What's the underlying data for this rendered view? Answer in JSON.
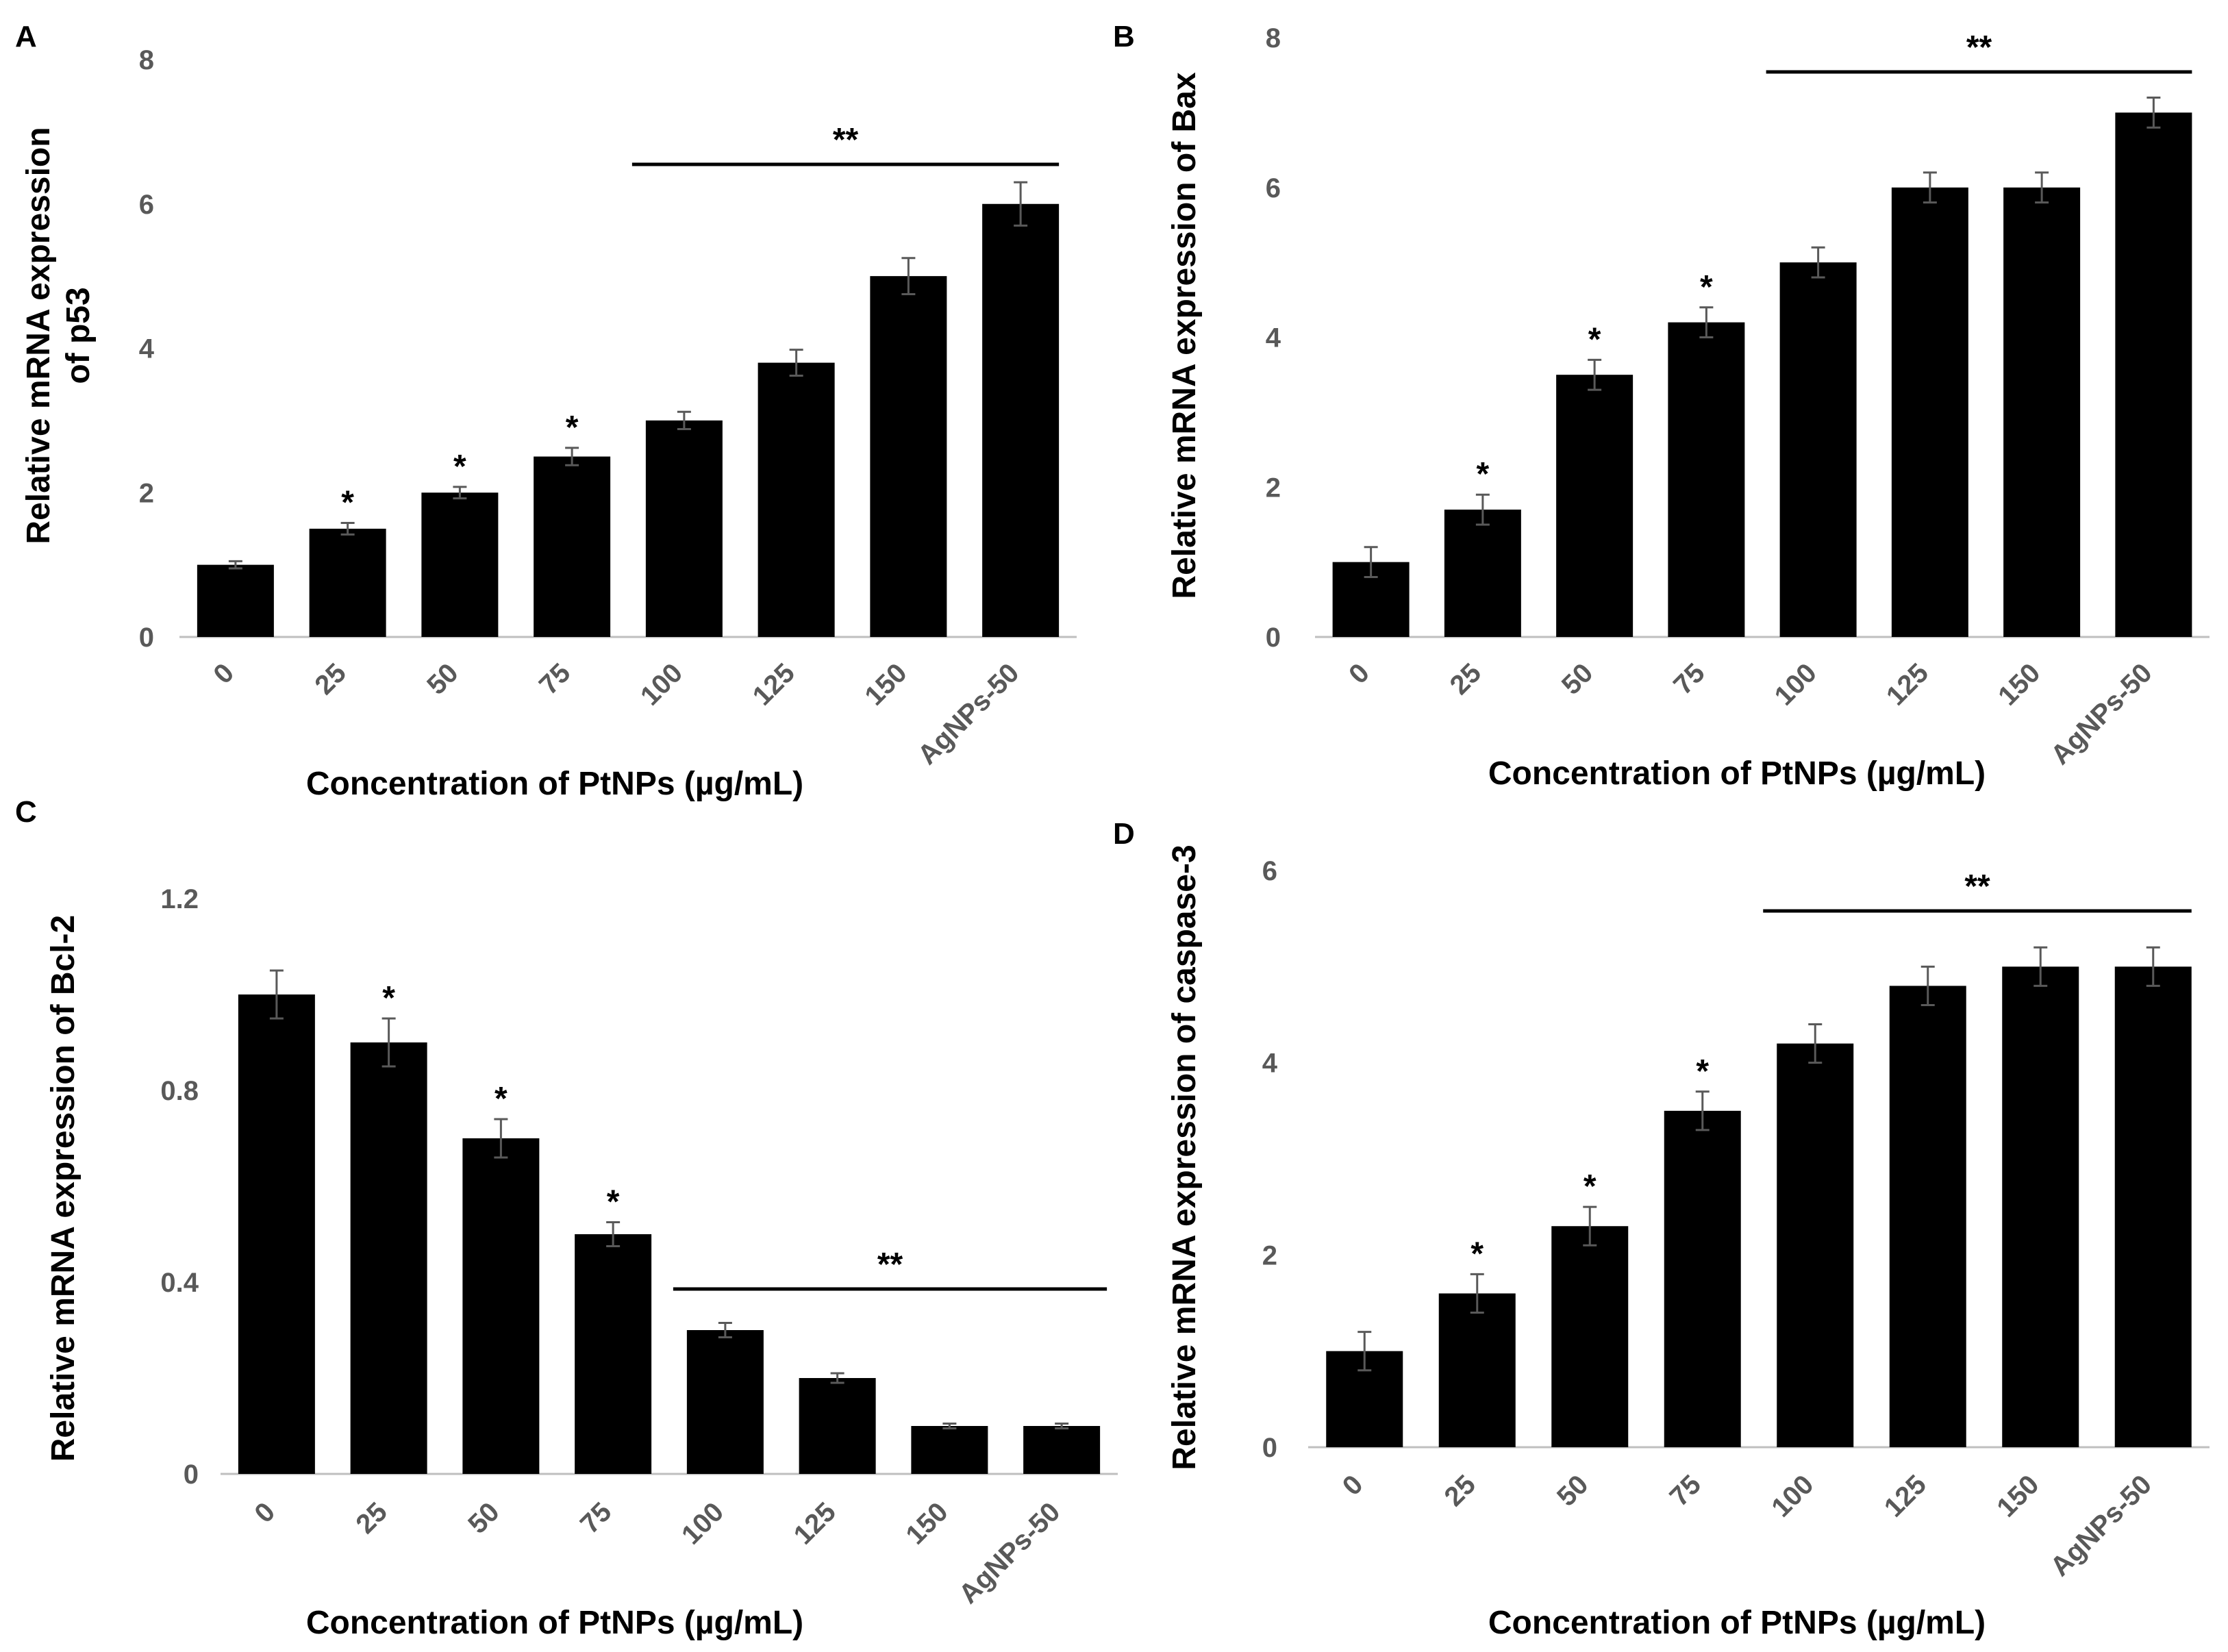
{
  "colors": {
    "bar": "#000000",
    "axis": "#bfbfbf",
    "tick_text": "#595959"
  },
  "chart_data": [
    {
      "panel": "A",
      "type": "bar",
      "categories": [
        "0",
        "25",
        "50",
        "75",
        "100",
        "125",
        "150",
        "AgNPs-50"
      ],
      "values": [
        1.0,
        1.5,
        2.0,
        2.5,
        3.0,
        3.8,
        5.0,
        6.0
      ],
      "errors": [
        0.05,
        0.08,
        0.08,
        0.12,
        0.12,
        0.18,
        0.25,
        0.3
      ],
      "markers": [
        "",
        "*",
        "*",
        "*",
        "",
        "",
        "",
        ""
      ],
      "bracket": {
        "from": "100",
        "to": "AgNPs-50",
        "label": "**"
      },
      "yticks": [
        "0",
        "2",
        "4",
        "6",
        "8"
      ],
      "ylim": [
        0,
        8
      ],
      "ylabel": [
        "Relative mRNA expression",
        "of p53"
      ],
      "xlabel": "Concentration of PtNPs (µg/mL)"
    },
    {
      "panel": "B",
      "type": "bar",
      "categories": [
        "0",
        "25",
        "50",
        "75",
        "100",
        "125",
        "150",
        "AgNPs-50"
      ],
      "values": [
        1.0,
        1.7,
        3.5,
        4.2,
        5.0,
        6.0,
        6.0,
        7.0
      ],
      "errors": [
        0.2,
        0.2,
        0.2,
        0.2,
        0.2,
        0.2,
        0.2,
        0.2
      ],
      "markers": [
        "",
        "*",
        "*",
        "*",
        "",
        "",
        "",
        ""
      ],
      "bracket": {
        "from": "100",
        "to": "AgNPs-50",
        "label": "**"
      },
      "yticks": [
        "0",
        "2",
        "4",
        "6",
        "8"
      ],
      "ylim": [
        0,
        8
      ],
      "ylabel": [
        "Relative mRNA expression of Bax"
      ],
      "xlabel": "Concentration of PtNPs (µg/mL)"
    },
    {
      "panel": "C",
      "type": "bar",
      "categories": [
        "0",
        "25",
        "50",
        "75",
        "100",
        "125",
        "150",
        "AgNPs-50"
      ],
      "values": [
        1.0,
        0.9,
        0.7,
        0.5,
        0.3,
        0.2,
        0.1,
        0.1
      ],
      "errors": [
        0.05,
        0.05,
        0.04,
        0.025,
        0.015,
        0.01,
        0.005,
        0.005
      ],
      "markers": [
        "",
        "*",
        "*",
        "*",
        "",
        "",
        "",
        ""
      ],
      "bracket": {
        "from": "100",
        "to": "AgNPs-50",
        "label": "**"
      },
      "yticks": [
        "0",
        "0.4",
        "0.8",
        "1.2"
      ],
      "ylim": [
        0,
        1.2
      ],
      "ylabel": [
        "Relative mRNA expression of Bcl-2"
      ],
      "xlabel": "Concentration of PtNPs (µg/mL)"
    },
    {
      "panel": "D",
      "type": "bar",
      "categories": [
        "0",
        "25",
        "50",
        "75",
        "100",
        "125",
        "150",
        "AgNPs-50"
      ],
      "values": [
        1.0,
        1.6,
        2.3,
        3.5,
        4.2,
        4.8,
        5.0,
        5.0
      ],
      "errors": [
        0.2,
        0.2,
        0.2,
        0.2,
        0.2,
        0.2,
        0.2,
        0.2
      ],
      "markers": [
        "",
        "*",
        "*",
        "*",
        "",
        "",
        "",
        ""
      ],
      "bracket": {
        "from": "100",
        "to": "AgNPs-50",
        "label": "**"
      },
      "yticks": [
        "0",
        "2",
        "4",
        "6"
      ],
      "ylim": [
        0,
        6
      ],
      "ylabel": [
        "Relative mRNA expression of caspase-3"
      ],
      "xlabel": "Concentration of PtNPs (µg/mL)"
    }
  ]
}
